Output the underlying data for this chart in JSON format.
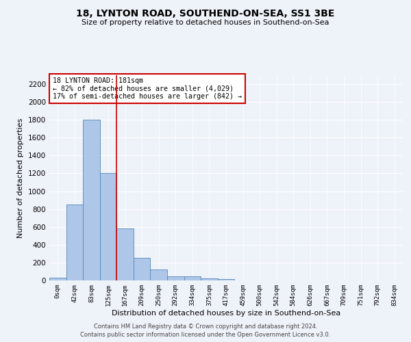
{
  "title": "18, LYNTON ROAD, SOUTHEND-ON-SEA, SS1 3BE",
  "subtitle": "Size of property relative to detached houses in Southend-on-Sea",
  "xlabel": "Distribution of detached houses by size in Southend-on-Sea",
  "ylabel": "Number of detached properties",
  "bin_labels": [
    "0sqm",
    "42sqm",
    "83sqm",
    "125sqm",
    "167sqm",
    "209sqm",
    "250sqm",
    "292sqm",
    "334sqm",
    "375sqm",
    "417sqm",
    "459sqm",
    "500sqm",
    "542sqm",
    "584sqm",
    "626sqm",
    "667sqm",
    "709sqm",
    "751sqm",
    "792sqm",
    "834sqm"
  ],
  "bar_heights": [
    30,
    850,
    1800,
    1200,
    580,
    255,
    120,
    45,
    45,
    25,
    18,
    0,
    0,
    0,
    0,
    0,
    0,
    0,
    0,
    0,
    0
  ],
  "bar_color": "#aec6e8",
  "bar_edge_color": "#5588bb",
  "ylim": [
    0,
    2300
  ],
  "yticks": [
    0,
    200,
    400,
    600,
    800,
    1000,
    1200,
    1400,
    1600,
    1800,
    2000,
    2200
  ],
  "property_line_x": 3.5,
  "annotation_title": "18 LYNTON ROAD: 181sqm",
  "annotation_line1": "← 82% of detached houses are smaller (4,029)",
  "annotation_line2": "17% of semi-detached houses are larger (842) →",
  "annotation_color": "#cc0000",
  "vline_color": "#cc0000",
  "footer1": "Contains HM Land Registry data © Crown copyright and database right 2024.",
  "footer2": "Contains public sector information licensed under the Open Government Licence v3.0.",
  "bg_color": "#eef2f9",
  "plot_bg_color": "#eef2f9"
}
